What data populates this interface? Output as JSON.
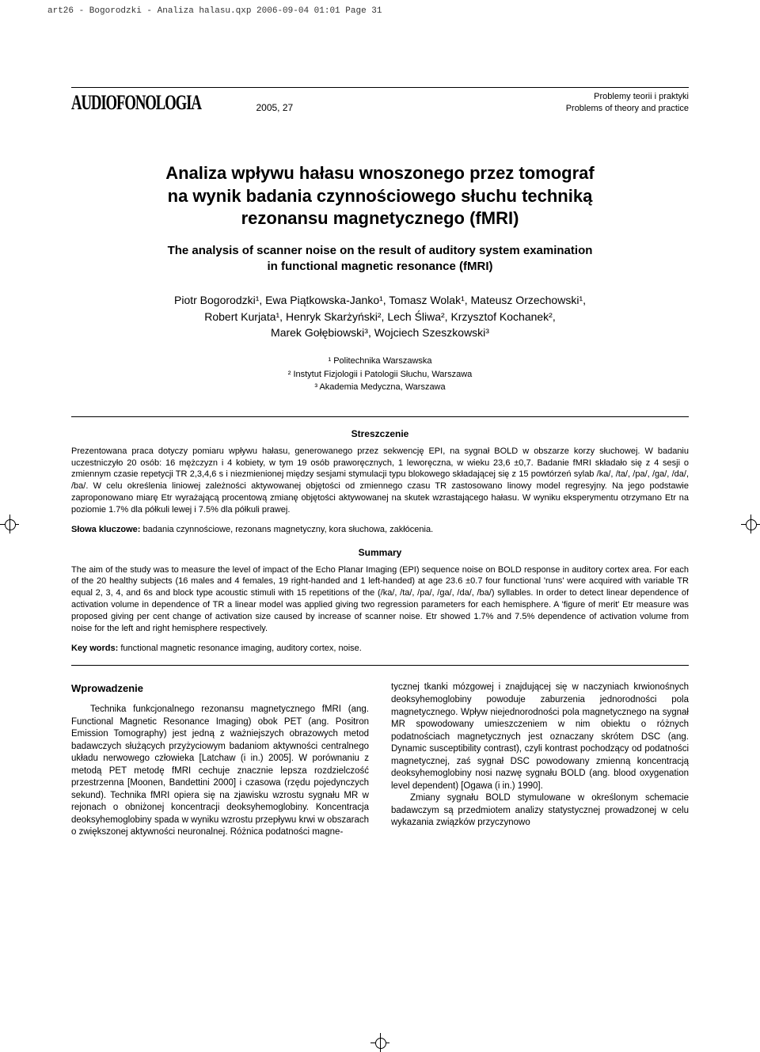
{
  "header_meta": "art26 - Bogorodzki - Analiza halasu.qxp  2006-09-04  01:01  Page 31",
  "journal": {
    "name": "AUDIOFONOLOGIA",
    "issue": "2005, 27",
    "section_pl": "Problemy teorii i praktyki",
    "section_en": "Problems of theory and practice"
  },
  "title_pl_line1": "Analiza wpływu hałasu wnoszonego przez tomograf",
  "title_pl_line2": "na wynik badania czynnościowego słuchu techniką",
  "title_pl_line3": "rezonansu magnetycznego (fMRI)",
  "title_en_line1": "The analysis of scanner noise on the result of auditory system examination",
  "title_en_line2": "in functional magnetic resonance (fMRI)",
  "authors_line1": "Piotr Bogorodzki¹, Ewa Piątkowska-Janko¹, Tomasz Wolak¹, Mateusz Orzechowski¹,",
  "authors_line2": "Robert Kurjata¹, Henryk Skarżyński², Lech Śliwa², Krzysztof Kochanek²,",
  "authors_line3": "Marek Gołębiowski³, Wojciech Szeszkowski³",
  "affil1": "¹ Politechnika Warszawska",
  "affil2": "² Instytut Fizjologii i Patologii Słuchu, Warszawa",
  "affil3": "³ Akademia Medyczna, Warszawa",
  "streszczenie_heading": "Streszczenie",
  "streszczenie_body": "Prezentowana praca dotyczy pomiaru wpływu hałasu, generowanego przez sekwencję EPI, na sygnał BOLD w obszarze korzy słuchowej. W badaniu uczestniczyło 20 osób: 16 mężczyzn i 4 kobiety, w tym 19 osób praworęcznych, 1 leworęczna, w wieku 23,6 ±0,7. Badanie fMRI składało się z 4 sesji o zmiennym czasie repetycji TR 2,3,4,6 s i niezmienionej między sesjami stymulacji typu blokowego składającej się z 15 powtórzeń sylab /ka/, /ta/, /pa/, /ga/, /da/, /ba/. W celu określenia liniowej zależności aktywowanej objętości od zmiennego czasu TR zastosowano linowy model regresyjny. Na jego podstawie zaproponowano miarę Etr wyrażającą procentową zmianę objętości aktywowanej na skutek wzrastającego hałasu. W wyniku eksperymentu otrzymano Etr na poziomie 1.7% dla półkuli lewej i 7.5% dla półkuli prawej.",
  "slowa_label": "Słowa kluczowe:",
  "slowa_text": " badania czynnościowe, rezonans magnetyczny, kora słuchowa, zakłócenia.",
  "summary_heading": "Summary",
  "summary_body": "The aim of the study was to measure the level of impact of the Echo Planar Imaging (EPI) sequence noise on BOLD response in auditory cortex area. For each of the 20 healthy subjects (16 males and 4 females, 19 right-handed and 1 left-handed) at age 23.6 ±0.7 four functional 'runs' were acquired with variable TR equal 2, 3, 4, and 6s and block type acoustic stimuli with 15 repetitions of the (/ka/, /ta/, /pa/, /ga/, /da/, /ba/) syllables. In order to detect linear dependence of activation volume in dependence of TR a linear model was applied giving two regression parameters for each hemisphere. A 'figure of merit' Etr measure was proposed giving per cent change of activation size caused by increase of scanner noise. Etr showed 1.7% and 7.5% dependence of activation volume from noise for the left and right hemisphere respectively.",
  "keywords_label": "Key words:",
  "keywords_text": " functional magnetic resonance imaging, auditory cortex, noise.",
  "intro_heading": "Wprowadzenie",
  "col_left": "Technika funkcjonalnego rezonansu magnetycznego fMRI (ang. Functional Magnetic Resonance Imaging) obok PET (ang. Positron Emission Tomography) jest jedną z ważniejszych obrazowych metod badawczych służących przyżyciowym badaniom aktywności centralnego układu nerwowego człowieka [Latchaw (i in.) 2005]. W porównaniu z metodą PET metodę fMRI cechuje znacznie lepsza rozdzielczość przestrzenna [Moonen, Bandettini 2000] i czasowa (rzędu pojedynczych sekund). Technika fMRI opiera się na zjawisku wzrostu sygnału MR w rejonach o obniżonej koncentracji deoksyhemoglobiny. Koncentracja deoksyhemoglobiny spada w wyniku wzrostu przepływu krwi w obszarach o zwiększonej aktywności neuronalnej. Różnica podatności magne-",
  "col_right_p1": "tycznej tkanki mózgowej i znajdującej się w naczyniach krwionośnych deoksyhemoglobiny powoduje zaburzenia jednorodności pola magnetycznego. Wpływ niejednorodności pola magnetycznego na sygnał MR spowodowany umieszczeniem w nim obiektu o różnych podatnościach magnetycznych jest oznaczany skrótem DSC (ang. Dynamic susceptibility contrast), czyli kontrast pochodzący od podatności magnetycznej, zaś sygnał DSC powodowany zmienną koncentracją deoksyhemoglobiny nosi nazwę sygnału BOLD (ang. blood oxygenation level dependent) [Ogawa (i in.) 1990].",
  "col_right_p2": "Zmiany sygnału BOLD stymulowane w określonym schemacie badawczym są przedmiotem analizy statystycznej prowadzonej w celu wykazania związków przyczynowo"
}
